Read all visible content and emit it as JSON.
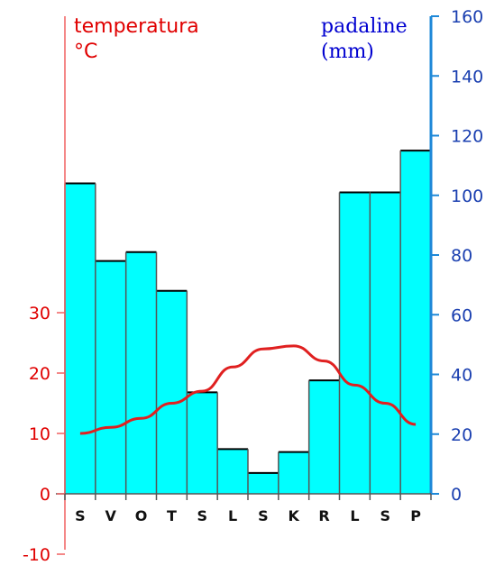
{
  "chart_data": {
    "type": "bar",
    "categories": [
      "S",
      "V",
      "O",
      "T",
      "S",
      "L",
      "S",
      "K",
      "R",
      "L",
      "S",
      "P"
    ],
    "series": [
      {
        "name": "padaline (mm)",
        "type": "bar",
        "axis": "right",
        "values": [
          104,
          78,
          81,
          68,
          34,
          15,
          7,
          14,
          38,
          101,
          101,
          115
        ]
      },
      {
        "name": "temperatura °C",
        "type": "line",
        "axis": "left",
        "values": [
          10,
          11,
          12.5,
          15,
          17,
          21,
          24,
          24.5,
          22,
          18,
          15,
          11.5
        ]
      }
    ],
    "left_axis": {
      "title_line1": "temperatura",
      "title_line2": "°C",
      "ticks": [
        "-10",
        "0",
        "10",
        "20",
        "30"
      ],
      "range": [
        -10,
        30
      ],
      "color": "#e00000"
    },
    "right_axis": {
      "title_line1": "padaline",
      "title_line2": "(mm)",
      "ticks": [
        "0",
        "20",
        "40",
        "60",
        "80",
        "100",
        "120",
        "140",
        "160"
      ],
      "range": [
        0,
        160
      ],
      "color": "#1a3fb0"
    },
    "bar_color": "#00ffff",
    "line_color": "#e02020"
  }
}
